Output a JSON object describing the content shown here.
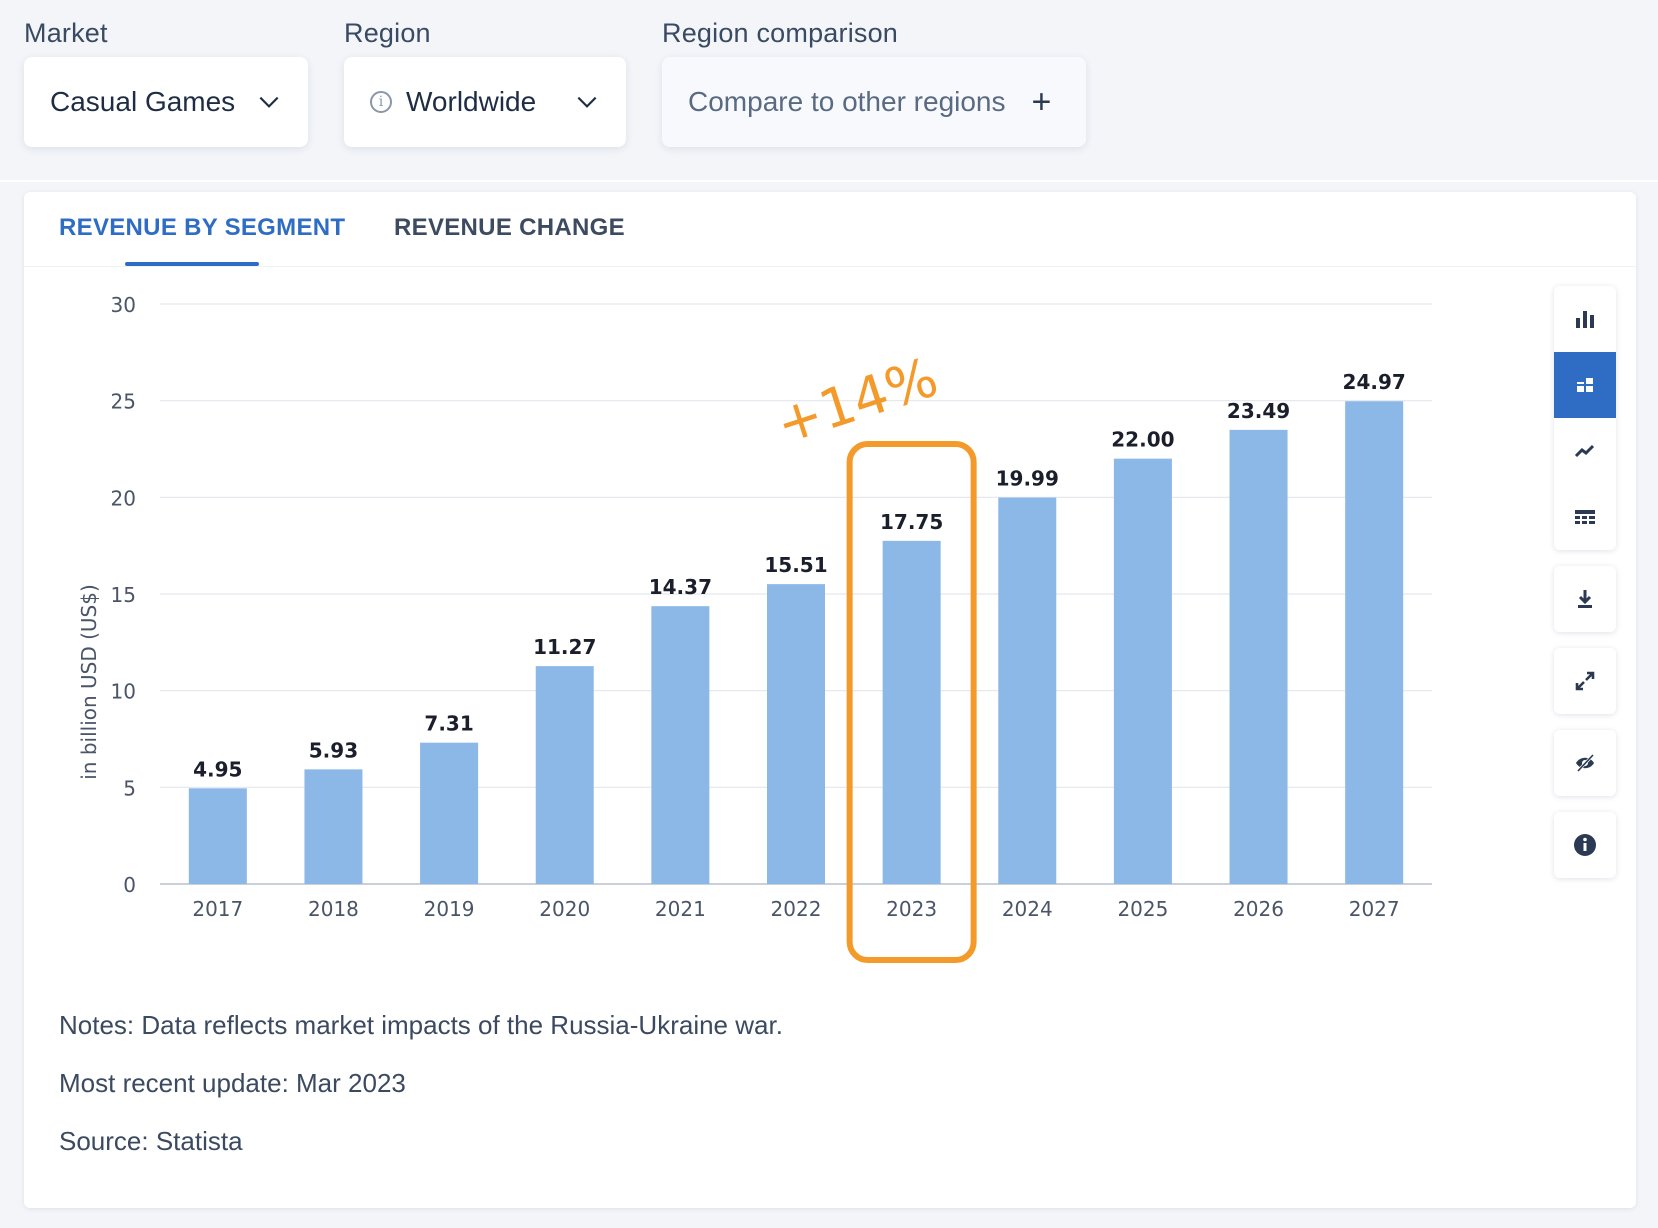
{
  "filters": {
    "market": {
      "label": "Market",
      "value": "Casual Games"
    },
    "region": {
      "label": "Region",
      "value": "Worldwide"
    },
    "comparison": {
      "label": "Region comparison",
      "value": "Compare to other regions"
    }
  },
  "tabs": [
    {
      "label": "REVENUE BY SEGMENT",
      "active": true
    },
    {
      "label": "REVENUE CHANGE",
      "active": false
    }
  ],
  "toolbar": {
    "icons": [
      "bar-chart-icon",
      "stacked-bar-icon",
      "trend-line-icon",
      "table-icon",
      "download-icon",
      "expand-icon",
      "hide-icon",
      "info-icon"
    ],
    "active": "stacked-bar-icon"
  },
  "annotation": {
    "text": "+14%",
    "highlight_category": "2023",
    "color": "#f39a2b"
  },
  "chart_data": {
    "type": "bar",
    "categories": [
      "2017",
      "2018",
      "2019",
      "2020",
      "2021",
      "2022",
      "2023",
      "2024",
      "2025",
      "2026",
      "2027"
    ],
    "values": [
      4.95,
      5.93,
      7.31,
      11.27,
      14.37,
      15.51,
      17.75,
      19.99,
      22.0,
      23.49,
      24.97
    ],
    "data_labels": [
      "4.95",
      "5.93",
      "7.31",
      "11.27",
      "14.37",
      "15.51",
      "17.75",
      "19.99",
      "22.00",
      "23.49",
      "24.97"
    ],
    "ylabel": "in billion USD (US$)",
    "xlabel": "",
    "ylim": [
      0,
      30
    ],
    "yticks": [
      0,
      5,
      10,
      15,
      20,
      25,
      30
    ],
    "grid": true,
    "bar_color": "#8cb8e8"
  },
  "notes": {
    "note": "Notes: Data reflects market impacts of the Russia-Ukraine war.",
    "update": "Most recent update: Mar 2023",
    "source": "Source: Statista"
  }
}
